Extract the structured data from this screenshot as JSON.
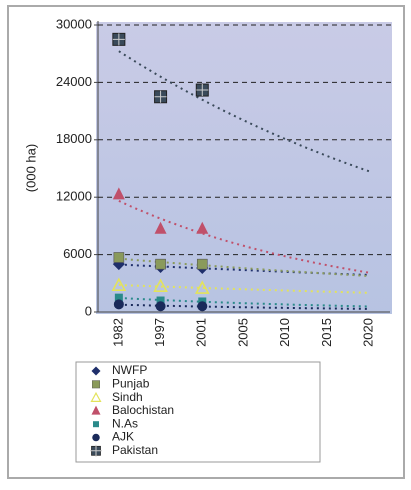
{
  "chart_data": {
    "type": "scatter",
    "y_label": "(000 ha)",
    "categories": [
      "1982",
      "1997",
      "2001",
      "2005",
      "2010",
      "2015",
      "2020"
    ],
    "ylim": [
      0,
      30000
    ],
    "yticks": [
      0,
      6000,
      12000,
      18000,
      24000,
      30000
    ],
    "grid": true,
    "trendlines": true,
    "series": [
      {
        "name": "NWFP",
        "color": "#1f2f6b",
        "marker": "diamond",
        "values": [
          5000,
          4700,
          4600,
          null,
          null,
          null,
          null
        ]
      },
      {
        "name": "Punjab",
        "color": "#8a9a5b",
        "marker": "square",
        "values": [
          5700,
          5000,
          5000,
          null,
          null,
          null,
          null
        ]
      },
      {
        "name": "Sindh",
        "color": "#e3e35a",
        "marker": "triangle-open",
        "values": [
          2800,
          2700,
          2500,
          null,
          null,
          null,
          null
        ]
      },
      {
        "name": "Balochistan",
        "color": "#c0506a",
        "marker": "triangle",
        "values": [
          12300,
          8700,
          8700,
          null,
          null,
          null,
          null
        ]
      },
      {
        "name": "N.As",
        "color": "#2a8a8a",
        "marker": "square-small",
        "values": [
          1500,
          1200,
          1100,
          null,
          null,
          null,
          null
        ]
      },
      {
        "name": "AJK",
        "color": "#1a2a5a",
        "marker": "circle",
        "values": [
          800,
          600,
          600,
          null,
          null,
          null,
          null
        ]
      },
      {
        "name": "Pakistan",
        "color": "#3a4a5a",
        "marker": "square-cross",
        "values": [
          28500,
          22500,
          23200,
          null,
          null,
          null,
          null
        ]
      }
    ]
  }
}
